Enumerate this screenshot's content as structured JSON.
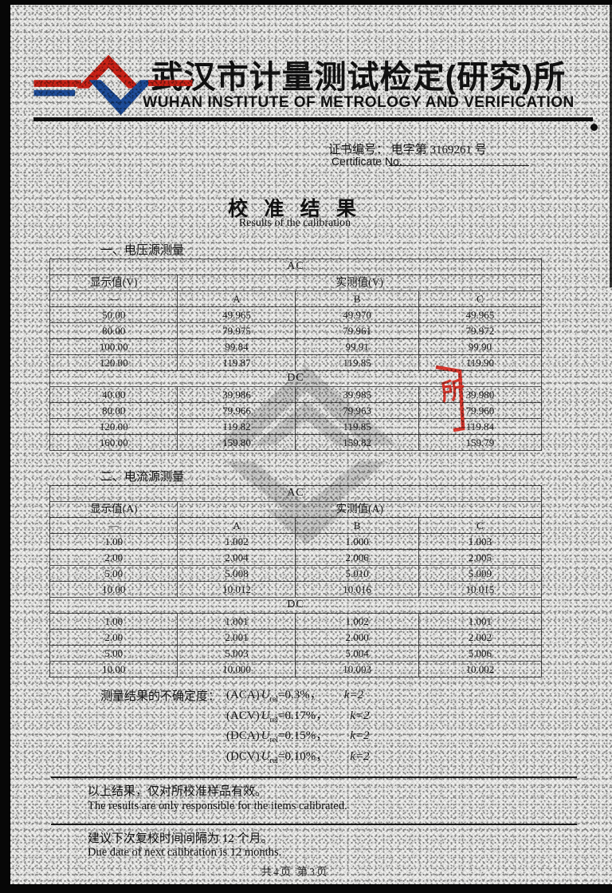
{
  "header": {
    "title_cn": "武汉市计量测试检定(研究)所",
    "title_en": "WUHAN INSTITUTE OF METROLOGY AND VERIFICATION"
  },
  "certificate": {
    "label_cn": "证书编号：",
    "number": "电字第 3169261 号",
    "label_en": "Certificate No."
  },
  "results_title": {
    "cn": "校 准 结 果",
    "en": "Results of the calibration"
  },
  "voltage_section": {
    "heading": "一、电压源测量",
    "table": {
      "rows": [
        {
          "type": "group",
          "label": "AC"
        },
        {
          "type": "units",
          "left": "显示值(V)",
          "right": "实测值(V)"
        },
        {
          "type": "sub",
          "cells": [
            "—",
            "A",
            "B",
            "C"
          ]
        },
        {
          "type": "data",
          "cells": [
            "50.00",
            "49.965",
            "49.970",
            "49.965"
          ]
        },
        {
          "type": "data",
          "cells": [
            "80.00",
            "79.975",
            "79.961",
            "79.972"
          ]
        },
        {
          "type": "data",
          "cells": [
            "100.00",
            "99.84",
            "99.91",
            "99.90"
          ]
        },
        {
          "type": "data",
          "cells": [
            "120.00",
            "119.87",
            "119.85",
            "119.90"
          ]
        },
        {
          "type": "group",
          "label": "DC"
        },
        {
          "type": "data",
          "cells": [
            "40.00",
            "39.986",
            "39.985",
            "39.980"
          ]
        },
        {
          "type": "data",
          "cells": [
            "80.00",
            "79.966",
            "79.963",
            "79.960"
          ]
        },
        {
          "type": "data",
          "cells": [
            "120.00",
            "119.82",
            "119.85",
            "119.84"
          ]
        },
        {
          "type": "data",
          "cells": [
            "160.00",
            "159.80",
            "159.82",
            "159.79"
          ]
        }
      ]
    }
  },
  "current_section": {
    "heading": "二、电流源测量",
    "table": {
      "rows": [
        {
          "type": "group",
          "label": "AC"
        },
        {
          "type": "units",
          "left": "显示值(A)",
          "right": "实测值(A)"
        },
        {
          "type": "sub",
          "cells": [
            "—",
            "A",
            "B",
            "C"
          ]
        },
        {
          "type": "data",
          "cells": [
            "1.00",
            "1.002",
            "1.000",
            "1.003"
          ]
        },
        {
          "type": "data",
          "cells": [
            "2.00",
            "2.004",
            "2.006",
            "2.005"
          ]
        },
        {
          "type": "data",
          "cells": [
            "5.00",
            "5.008",
            "5.010",
            "5.009"
          ]
        },
        {
          "type": "data",
          "cells": [
            "10.00",
            "10.012",
            "10.016",
            "10.015"
          ]
        },
        {
          "type": "group",
          "label": "DC"
        },
        {
          "type": "data",
          "cells": [
            "1.00",
            "1.001",
            "1.002",
            "1.001"
          ]
        },
        {
          "type": "data",
          "cells": [
            "2.00",
            "2.001",
            "2.000",
            "2.002"
          ]
        },
        {
          "type": "data",
          "cells": [
            "5.00",
            "5.003",
            "5.004",
            "5.006"
          ]
        },
        {
          "type": "data",
          "cells": [
            "10.00",
            "10.000",
            "10.003",
            "10.002"
          ]
        }
      ]
    }
  },
  "uncertainty": {
    "label": "测量结果的不确定度：",
    "lines": [
      {
        "cond": "(ACA)",
        "usym": "U",
        "usub": "rel",
        "eq": "=0.3%，",
        "k": "k=2"
      },
      {
        "cond": "(ACV)",
        "usym": "U",
        "usub": "rel",
        "eq": "=0.17%，",
        "k": "k=2"
      },
      {
        "cond": "(DCA)",
        "usym": "U",
        "usub": "rel",
        "eq": "=0.15%，",
        "k": "k=2"
      },
      {
        "cond": "(DCV)",
        "usym": "U",
        "usub": "rel",
        "eq": "=0.10%，",
        "k": "k=2"
      }
    ]
  },
  "notes": {
    "cn1": "以上结果，仅对所校准样品有效。",
    "en1": "The results are only responsible for the items calibrated.",
    "cn2": "建议下次复校时间间隔为 12 个月。",
    "en2": "Due date of next calibration is  12  months."
  },
  "footer": {
    "pagination": "共4页  第3页"
  },
  "stamp": {
    "char": "所"
  },
  "colors": {
    "logo_red": "#cf2318",
    "logo_blue": "#1f4e9c",
    "stamp_red": "#df271c"
  }
}
